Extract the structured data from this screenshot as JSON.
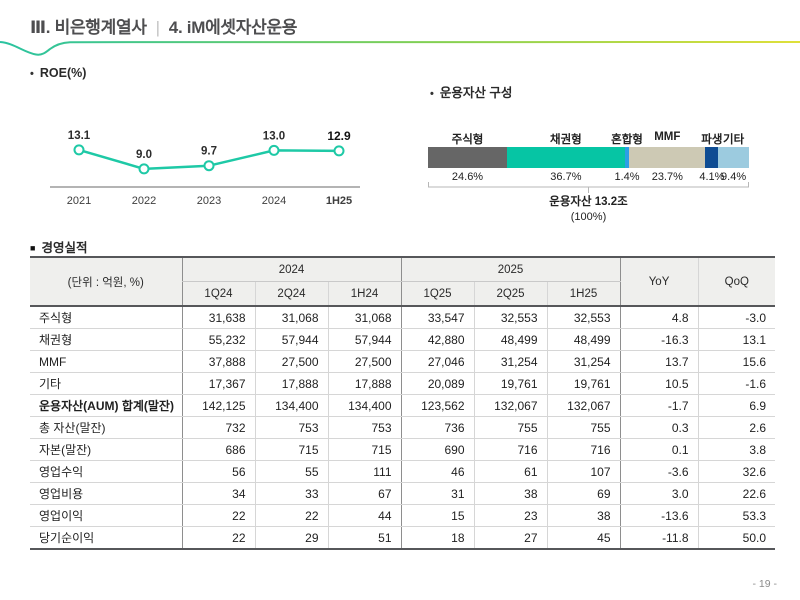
{
  "header": {
    "section": "Ⅲ. 비은행계열사",
    "divider": "|",
    "subsection": "4. iM에셋자산운용",
    "accent_gradient": [
      "#2ac3a0",
      "#84d051",
      "#dfe03a"
    ]
  },
  "footer": {
    "page_number": "- 19 -"
  },
  "roe_section": {
    "bullet": "•",
    "title": "ROE(%)"
  },
  "composition_section": {
    "bullet": "•",
    "title": "운용자산 구성",
    "total_line1": "운용자산 13.2조",
    "total_line2": "(100%)"
  },
  "performance_section": {
    "bullet": "■",
    "title": "경영실적"
  },
  "chart_data": [
    {
      "type": "line",
      "title": "ROE(%)",
      "categories": [
        "2021",
        "2022",
        "2023",
        "2024",
        "1H25"
      ],
      "values": [
        13.1,
        9.0,
        9.7,
        13.0,
        12.9
      ],
      "line_color": "#1ec9a6",
      "marker": "open-circle",
      "ylim": [
        8,
        14
      ],
      "grid": false,
      "data_labels": true
    },
    {
      "type": "bar",
      "subtype": "stacked-horizontal",
      "title": "운용자산 구성",
      "total_label": "운용자산 13.2조 (100%)",
      "segments": [
        {
          "label": "주식형",
          "value": 24.6,
          "color": "#666666"
        },
        {
          "label": "채권형",
          "value": 36.7,
          "color": "#06c5a4"
        },
        {
          "label": "혼합형",
          "value": 1.4,
          "color": "#2b9fe6"
        },
        {
          "label": "MMF",
          "value": 23.7,
          "color": "#cdc9b4"
        },
        {
          "label": "파생",
          "value": 4.1,
          "color": "#0e4c93"
        },
        {
          "label": "기타",
          "value": 9.4,
          "color": "#9ccbdf"
        }
      ]
    }
  ],
  "table": {
    "unit_label": "(단위 : 억원, %)",
    "col_groups": [
      "2024",
      "2025"
    ],
    "sub_headers": [
      "1Q24",
      "2Q24",
      "1H24",
      "1Q25",
      "2Q25",
      "1H25"
    ],
    "yoy_label": "YoY",
    "qoq_label": "QoQ",
    "rows": [
      {
        "label": "주식형",
        "bold": false,
        "values": [
          "31,638",
          "31,068",
          "31,068",
          "33,547",
          "32,553",
          "32,553",
          "4.8",
          "-3.0"
        ]
      },
      {
        "label": "채권형",
        "bold": false,
        "values": [
          "55,232",
          "57,944",
          "57,944",
          "42,880",
          "48,499",
          "48,499",
          "-16.3",
          "13.1"
        ]
      },
      {
        "label": "MMF",
        "bold": false,
        "values": [
          "37,888",
          "27,500",
          "27,500",
          "27,046",
          "31,254",
          "31,254",
          "13.7",
          "15.6"
        ]
      },
      {
        "label": "기타",
        "bold": false,
        "values": [
          "17,367",
          "17,888",
          "17,888",
          "20,089",
          "19,761",
          "19,761",
          "10.5",
          "-1.6"
        ]
      },
      {
        "label": "운용자산(AUM) 합계(말잔)",
        "bold": true,
        "values": [
          "142,125",
          "134,400",
          "134,400",
          "123,562",
          "132,067",
          "132,067",
          "-1.7",
          "6.9"
        ]
      },
      {
        "label": "총 자산(말잔)",
        "bold": false,
        "values": [
          "732",
          "753",
          "753",
          "736",
          "755",
          "755",
          "0.3",
          "2.6"
        ]
      },
      {
        "label": "자본(말잔)",
        "bold": false,
        "values": [
          "686",
          "715",
          "715",
          "690",
          "716",
          "716",
          "0.1",
          "3.8"
        ]
      },
      {
        "label": "영업수익",
        "bold": false,
        "values": [
          "56",
          "55",
          "111",
          "46",
          "61",
          "107",
          "-3.6",
          "32.6"
        ]
      },
      {
        "label": "영업비용",
        "bold": false,
        "values": [
          "34",
          "33",
          "67",
          "31",
          "38",
          "69",
          "3.0",
          "22.6"
        ]
      },
      {
        "label": "영업이익",
        "bold": false,
        "values": [
          "22",
          "22",
          "44",
          "15",
          "23",
          "38",
          "-13.6",
          "53.3"
        ]
      },
      {
        "label": "당기순이익",
        "bold": false,
        "values": [
          "22",
          "29",
          "51",
          "18",
          "27",
          "45",
          "-11.8",
          "50.0"
        ]
      }
    ]
  }
}
